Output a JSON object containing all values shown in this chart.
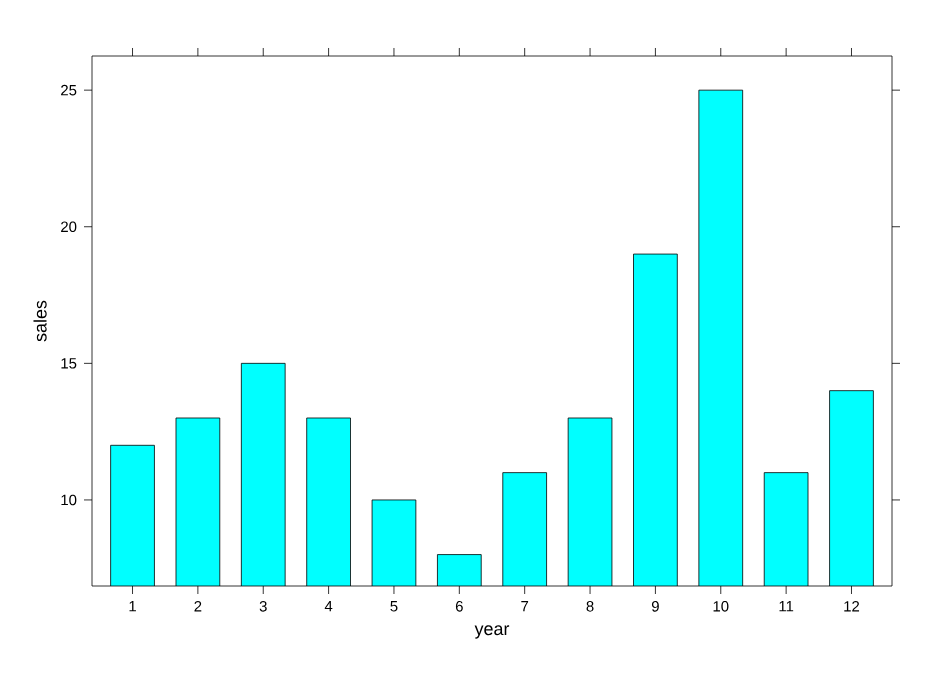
{
  "chart_data": {
    "type": "bar",
    "xlabel": "year",
    "ylabel": "sales",
    "categories": [
      "1",
      "2",
      "3",
      "4",
      "5",
      "6",
      "7",
      "8",
      "9",
      "10",
      "11",
      "12"
    ],
    "values": [
      12,
      13,
      15,
      13,
      10,
      8,
      11,
      13,
      19,
      25,
      11,
      14
    ],
    "color": "#00ffff",
    "ylim": [
      6.85,
      26.25
    ],
    "yticks": [
      10,
      15,
      20,
      25
    ]
  }
}
